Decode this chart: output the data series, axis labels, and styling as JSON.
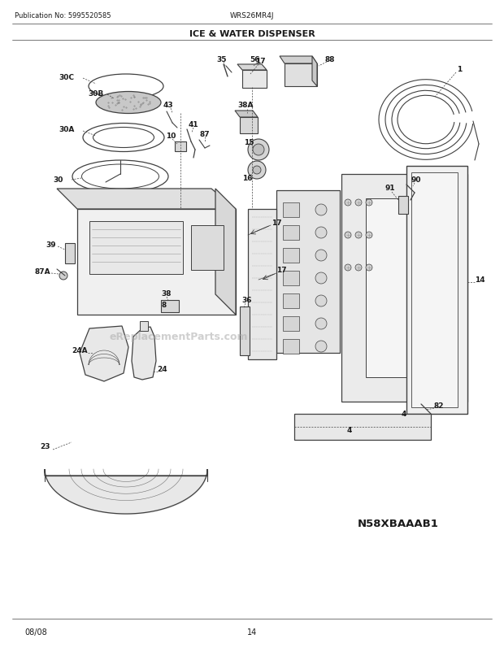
{
  "pub_no": "Publication No: 5995520585",
  "model": "WRS26MR4J",
  "title": "ICE & WATER DISPENSER",
  "footer_date": "08/08",
  "footer_page": "14",
  "part_id": "N58XBAAAB1",
  "bg_color": "#ffffff",
  "line_color": "#404040",
  "text_color": "#1a1a1a",
  "watermark": "eReplacementParts.com",
  "watermark_color": "#b0b0b0"
}
